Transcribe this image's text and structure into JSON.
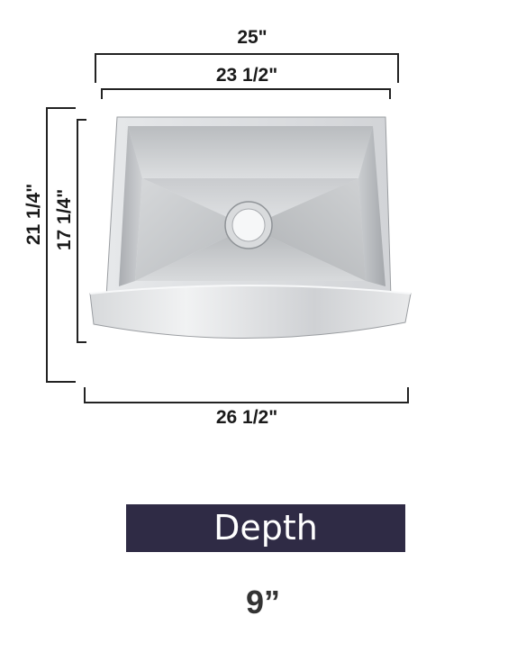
{
  "dimensions": {
    "top_outer": "25\"",
    "top_inner": "23 1/2\"",
    "left_outer": "21 1/4\"",
    "left_inner": "17 1/4\"",
    "bottom": "26 1/2\""
  },
  "depth": {
    "label": "Depth",
    "value": "9”"
  },
  "colors": {
    "banner_bg": "#2f2b45",
    "banner_text": "#ffffff",
    "dimension_line": "#222222",
    "steel_light": "#e4e6e8",
    "steel_mid": "#c4c7ca",
    "steel_dark": "#9ea2a6"
  }
}
